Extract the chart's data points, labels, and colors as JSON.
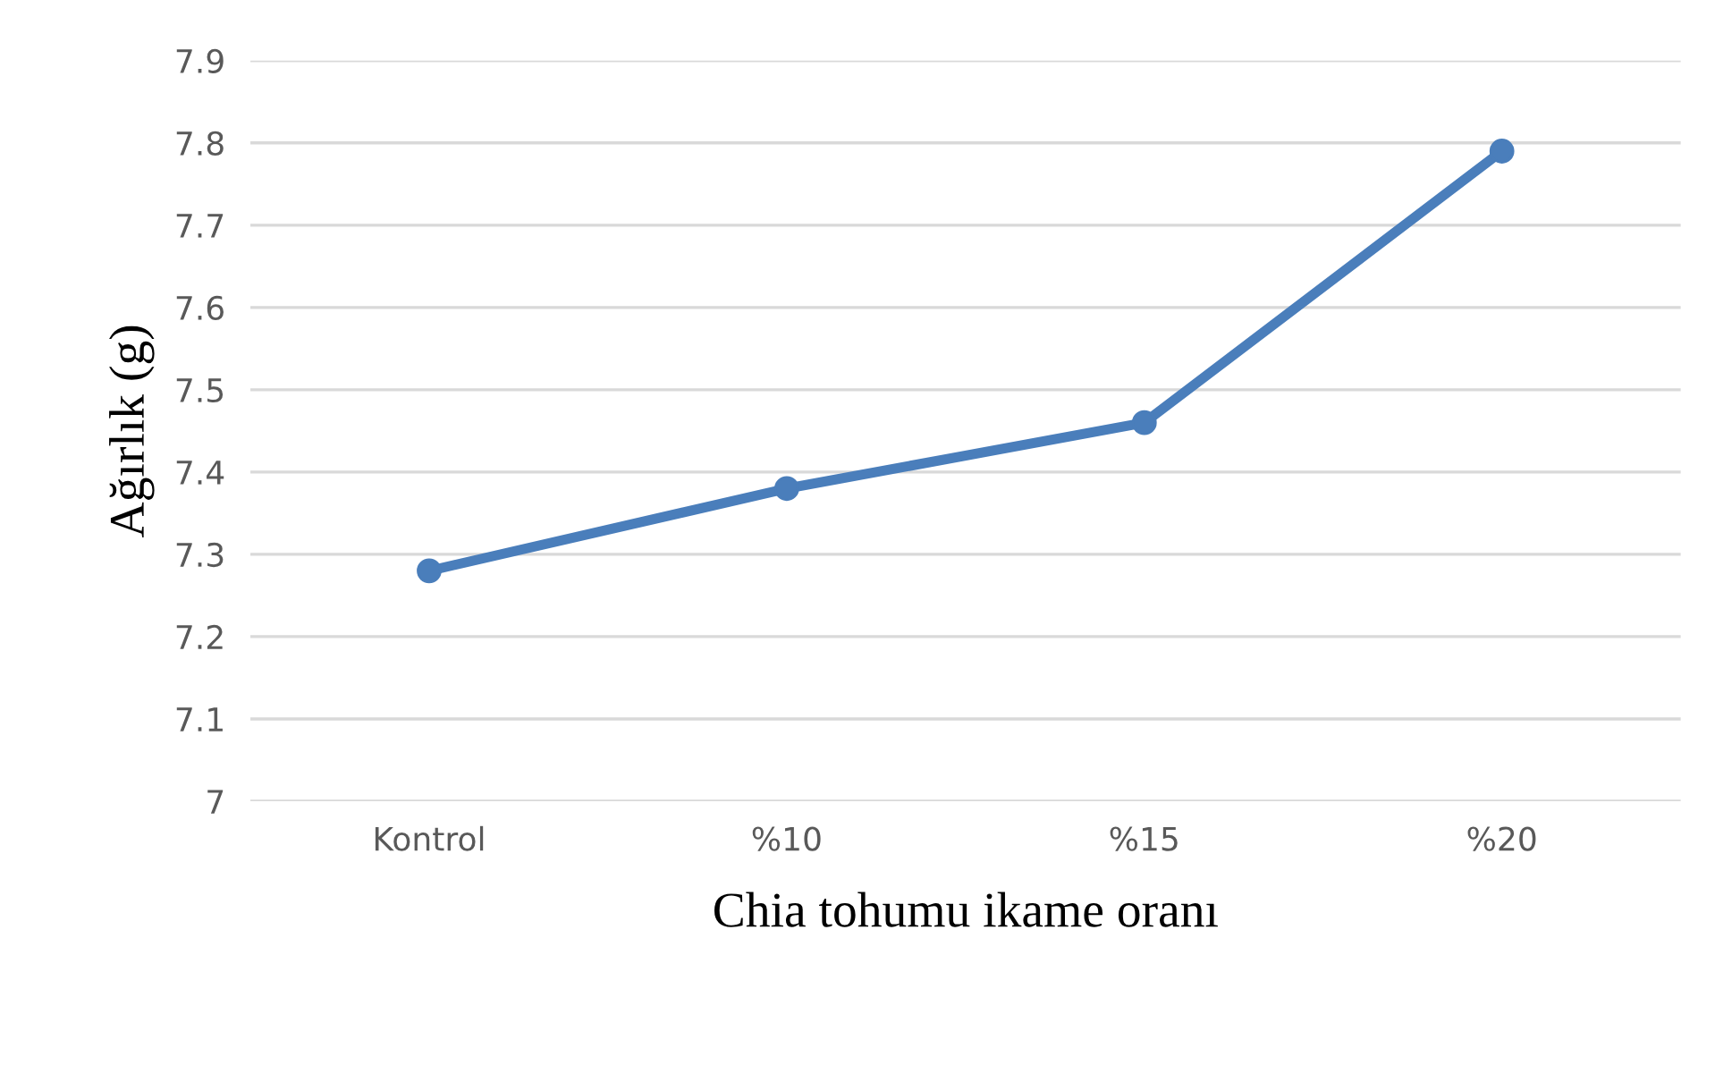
{
  "chart_data": {
    "type": "line",
    "xlabel": "Chia tohumu ikame oranı",
    "ylabel": "Ağırlık (g)",
    "categories": [
      "Kontrol",
      "%10",
      "%15",
      "%20"
    ],
    "series": [
      {
        "color": "#4a7ebb",
        "values": [
          7.28,
          7.38,
          7.46,
          7.79
        ]
      }
    ],
    "ylim": [
      7,
      7.9
    ],
    "yticks": [
      7,
      7.1,
      7.2,
      7.3,
      7.4,
      7.5,
      7.6,
      7.7,
      7.8,
      7.9
    ],
    "grid": "y",
    "marker": "circle",
    "line_style": "solid",
    "legend": false
  }
}
